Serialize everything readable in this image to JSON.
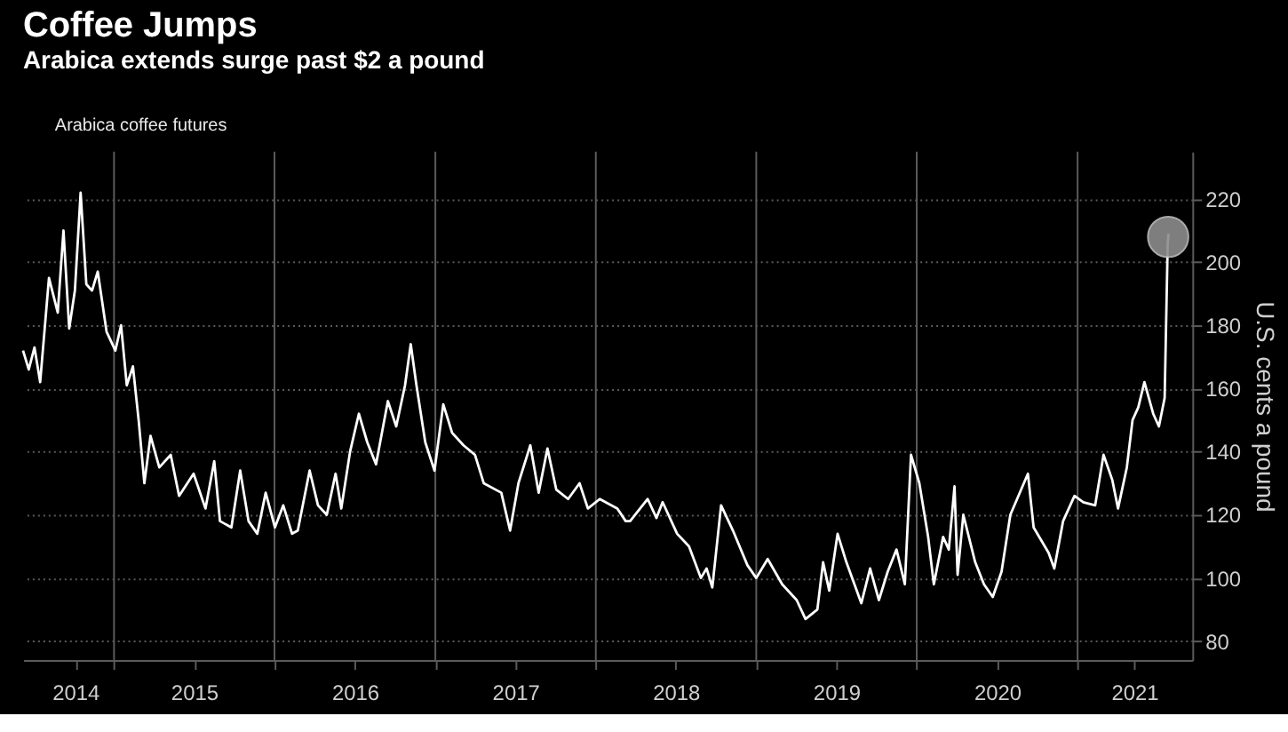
{
  "chart_data": {
    "type": "line",
    "title": "Coffee Jumps",
    "subtitle": "Arabica extends surge past $2 a pound",
    "ylabel": "U.S. cents a pound",
    "xlim": [
      "2014-06-08",
      "2021-09-19"
    ],
    "ylim": [
      74,
      235
    ],
    "yticks": [
      80,
      100,
      120,
      140,
      160,
      180,
      200,
      220
    ],
    "xticks": [
      {
        "value": "2014-10-05",
        "label": "2014"
      },
      {
        "value": "2015-01-01",
        "label": null
      },
      {
        "value": "2015-07-02",
        "label": "2015"
      },
      {
        "value": "2016-01-01",
        "label": null
      },
      {
        "value": "2016-07-02",
        "label": "2016"
      },
      {
        "value": "2017-01-01",
        "label": null
      },
      {
        "value": "2017-07-02",
        "label": "2017"
      },
      {
        "value": "2018-01-01",
        "label": null
      },
      {
        "value": "2018-07-02",
        "label": "2018"
      },
      {
        "value": "2019-01-01",
        "label": null
      },
      {
        "value": "2019-07-02",
        "label": "2019"
      },
      {
        "value": "2020-01-01",
        "label": null
      },
      {
        "value": "2020-07-02",
        "label": "2020"
      },
      {
        "value": "2021-01-01",
        "label": null
      },
      {
        "value": "2021-05-10",
        "label": "2021"
      }
    ],
    "grid": true,
    "legend": "top left",
    "line_style": "solid",
    "marker": "none",
    "series": [
      {
        "name": "Arabica coffee futures",
        "color": "#ffffff",
        "x": [
          "2014-06-08",
          "2014-06-21",
          "2014-07-04",
          "2014-07-17",
          "2014-08-06",
          "2014-08-26",
          "2014-09-08",
          "2014-09-21",
          "2014-10-04",
          "2014-10-17",
          "2014-10-30",
          "2014-11-12",
          "2014-11-25",
          "2014-12-15",
          "2015-01-04",
          "2015-01-17",
          "2015-01-30",
          "2015-02-13",
          "2015-02-26",
          "2015-03-11",
          "2015-03-25",
          "2015-04-14",
          "2015-05-10",
          "2015-05-29",
          "2015-07-01",
          "2015-07-28",
          "2015-08-17",
          "2015-08-30",
          "2015-09-25",
          "2015-10-15",
          "2015-11-03",
          "2015-11-23",
          "2015-12-12",
          "2016-01-02",
          "2016-01-21",
          "2016-02-10",
          "2016-02-23",
          "2016-03-21",
          "2016-04-09",
          "2016-04-29",
          "2016-05-19",
          "2016-06-01",
          "2016-06-21",
          "2016-07-11",
          "2016-07-30",
          "2016-08-19",
          "2016-09-15",
          "2016-10-04",
          "2016-10-24",
          "2016-11-06",
          "2016-11-19",
          "2016-12-09",
          "2016-12-30",
          "2017-01-19",
          "2017-02-08",
          "2017-03-06",
          "2017-04-01",
          "2017-04-21",
          "2017-05-31",
          "2017-06-20",
          "2017-07-09",
          "2017-08-05",
          "2017-08-24",
          "2017-09-13",
          "2017-10-03",
          "2017-10-30",
          "2017-11-25",
          "2017-12-14",
          "2018-01-10",
          "2018-02-19",
          "2018-03-10",
          "2018-03-20",
          "2018-04-29",
          "2018-05-19",
          "2018-06-02",
          "2018-07-05",
          "2018-08-01",
          "2018-08-28",
          "2018-09-10",
          "2018-09-23",
          "2018-10-13",
          "2018-11-09",
          "2018-12-12",
          "2019-01-01",
          "2019-01-27",
          "2019-03-01",
          "2019-04-03",
          "2019-04-23",
          "2019-05-20",
          "2019-06-02",
          "2019-06-16",
          "2019-07-05",
          "2019-07-25",
          "2019-08-28",
          "2019-09-17",
          "2019-10-07",
          "2019-10-27",
          "2019-11-16",
          "2019-12-05",
          "2019-12-19",
          "2020-01-07",
          "2020-01-27",
          "2020-02-09",
          "2020-03-01",
          "2020-03-14",
          "2020-03-27",
          "2020-04-03",
          "2020-04-16",
          "2020-05-13",
          "2020-06-02",
          "2020-06-22",
          "2020-07-12",
          "2020-08-01",
          "2020-09-10",
          "2020-09-23",
          "2020-10-27",
          "2020-11-09",
          "2020-11-29",
          "2020-12-25",
          "2021-01-14",
          "2021-02-10",
          "2021-03-01",
          "2021-03-21",
          "2021-04-03",
          "2021-04-23",
          "2021-05-06",
          "2021-05-19",
          "2021-06-02",
          "2021-06-22",
          "2021-07-05",
          "2021-07-18",
          "2021-07-25",
          "2021-07-27"
        ],
        "values": [
          172,
          166,
          173,
          162,
          195,
          184,
          210,
          179,
          191,
          222,
          193,
          191,
          197,
          178,
          172,
          180,
          161,
          167,
          150,
          130,
          145,
          135,
          139,
          126,
          133,
          122,
          137,
          118,
          116,
          134,
          118,
          114,
          127,
          116,
          123,
          114,
          115,
          134,
          123,
          120,
          133,
          122,
          140,
          152,
          143,
          136,
          156,
          148,
          161,
          174,
          161,
          143,
          134,
          155,
          146,
          142,
          139,
          130,
          127,
          115,
          130,
          142,
          127,
          141,
          128,
          125,
          130,
          122,
          125,
          122,
          118,
          118,
          125,
          119,
          124,
          114,
          110,
          100,
          103,
          97,
          123,
          115,
          104,
          100,
          106,
          98,
          93,
          87,
          90,
          105,
          96,
          114,
          105,
          92,
          103,
          93,
          102,
          109,
          98,
          139,
          130,
          113,
          98,
          113,
          109,
          129,
          101,
          120,
          105,
          98,
          94,
          102,
          120,
          133,
          116,
          108,
          103,
          118,
          126,
          124,
          123,
          139,
          131,
          122,
          135,
          150,
          154,
          162,
          152,
          148,
          157,
          206,
          209
        ]
      },
      {
        "type": "scatter",
        "color": "#8c8c8c",
        "marker": "circle",
        "x": [
          "2021-07-26"
        ],
        "values": [
          208
        ]
      }
    ]
  }
}
